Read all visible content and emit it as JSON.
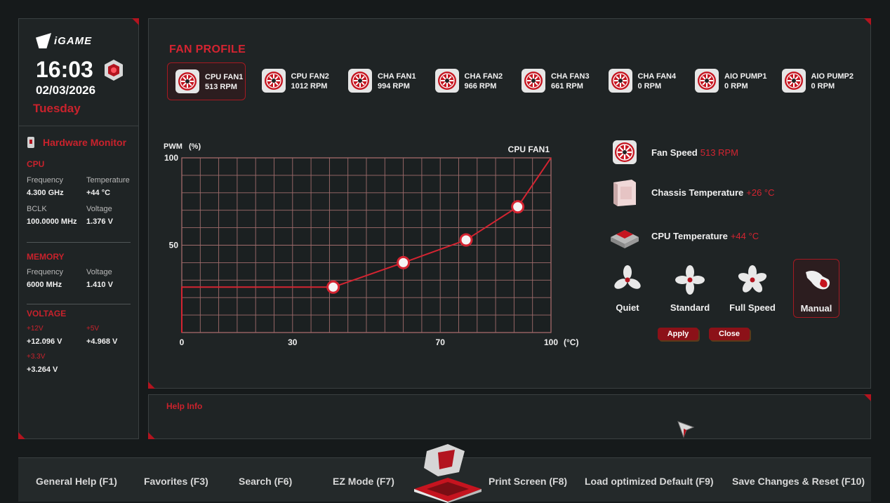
{
  "sidebar": {
    "logo_text": "iGAME",
    "time": "16:03",
    "date": "02/03/2026",
    "day": "Tuesday",
    "hardware_monitor_title": "Hardware Monitor",
    "cpu": {
      "title": "CPU",
      "frequency_label": "Frequency",
      "frequency": "4.300 GHz",
      "temperature_label": "Temperature",
      "temperature": "+44 °C",
      "bclk_label": "BCLK",
      "bclk": "100.0000 MHz",
      "voltage_label": "Voltage",
      "voltage": "1.376 V"
    },
    "memory": {
      "title": "MEMORY",
      "frequency_label": "Frequency",
      "frequency": "6000 MHz",
      "voltage_label": "Voltage",
      "voltage": "1.410 V"
    },
    "voltage": {
      "title": "VOLTAGE",
      "v12_label": "+12V",
      "v12": "+12.096 V",
      "v5_label": "+5V",
      "v5": "+4.968 V",
      "v33_label": "+3.3V",
      "v33": "+3.264 V"
    }
  },
  "main": {
    "title": "FAN PROFILE",
    "fans": [
      {
        "name": "CPU FAN1",
        "rpm": "513 RPM",
        "selected": true
      },
      {
        "name": "CPU FAN2",
        "rpm": "1012 RPM",
        "selected": false
      },
      {
        "name": "CHA FAN1",
        "rpm": "994 RPM",
        "selected": false
      },
      {
        "name": "CHA FAN2",
        "rpm": "966 RPM",
        "selected": false
      },
      {
        "name": "CHA FAN3",
        "rpm": "661 RPM",
        "selected": false
      },
      {
        "name": "CHA FAN4",
        "rpm": "0 RPM",
        "selected": false
      },
      {
        "name": "AIO PUMP1",
        "rpm": "0 RPM",
        "selected": false
      },
      {
        "name": "AIO PUMP2",
        "rpm": "0 RPM",
        "selected": false
      }
    ],
    "status": {
      "fan_speed_label": "Fan Speed",
      "fan_speed": "513 RPM",
      "chassis_temp_label": "Chassis Temperature",
      "chassis_temp": "+26 °C",
      "cpu_temp_label": "CPU Temperature",
      "cpu_temp": "+44 °C"
    },
    "modes": [
      {
        "label": "Quiet",
        "selected": false
      },
      {
        "label": "Standard",
        "selected": false
      },
      {
        "label": "Full Speed",
        "selected": false
      },
      {
        "label": "Manual",
        "selected": true
      }
    ],
    "apply_label": "Apply",
    "close_label": "Close"
  },
  "chart_data": {
    "type": "line",
    "title": "CPU FAN1",
    "ylabel": "PWM",
    "ylabel_unit": "(%)",
    "xlabel_unit": "(°C)",
    "xlim": [
      0,
      100
    ],
    "ylim": [
      0,
      100
    ],
    "xticks": [
      0,
      30,
      70,
      100
    ],
    "yticks": [
      50,
      100
    ],
    "grid": true,
    "floor_segment": {
      "from": [
        0,
        26
      ],
      "to": [
        41,
        26
      ]
    },
    "series": [
      {
        "x": [
          41,
          60,
          77,
          91,
          100
        ],
        "y": [
          26,
          40,
          53,
          72,
          100
        ],
        "control_points": [
          41,
          60,
          77,
          91
        ]
      }
    ]
  },
  "help": {
    "title": "Help Info"
  },
  "bottom_bar": {
    "items": [
      "General Help (F1)",
      "Favorites (F3)",
      "Search (F6)",
      "EZ Mode (F7)",
      "Print Screen (F8)",
      "Load optimized Default (F9)",
      "Save Changes & Reset (F10)"
    ]
  },
  "colors": {
    "accent": "#d42431",
    "panel": "#1f2425",
    "background": "#161a1b"
  }
}
